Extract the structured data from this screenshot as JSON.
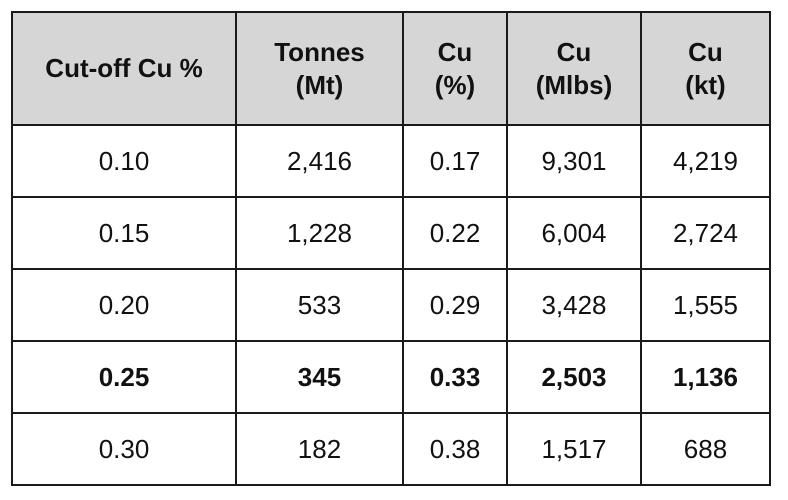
{
  "table": {
    "headers": [
      [
        "Cut-off Cu %"
      ],
      [
        "Tonnes",
        "(Mt)"
      ],
      [
        "Cu",
        "(%)"
      ],
      [
        "Cu",
        "(Mlbs)"
      ],
      [
        "Cu",
        "(kt)"
      ]
    ],
    "rows": [
      {
        "cells": [
          "0.10",
          "2,416",
          "0.17",
          "9,301",
          "4,219"
        ],
        "bold": false
      },
      {
        "cells": [
          "0.15",
          "1,228",
          "0.22",
          "6,004",
          "2,724"
        ],
        "bold": false
      },
      {
        "cells": [
          "0.20",
          "533",
          "0.29",
          "3,428",
          "1,555"
        ],
        "bold": false
      },
      {
        "cells": [
          "0.25",
          "345",
          "0.33",
          "2,503",
          "1,136"
        ],
        "bold": true
      },
      {
        "cells": [
          "0.30",
          "182",
          "0.38",
          "1,517",
          "688"
        ],
        "bold": false
      }
    ]
  }
}
